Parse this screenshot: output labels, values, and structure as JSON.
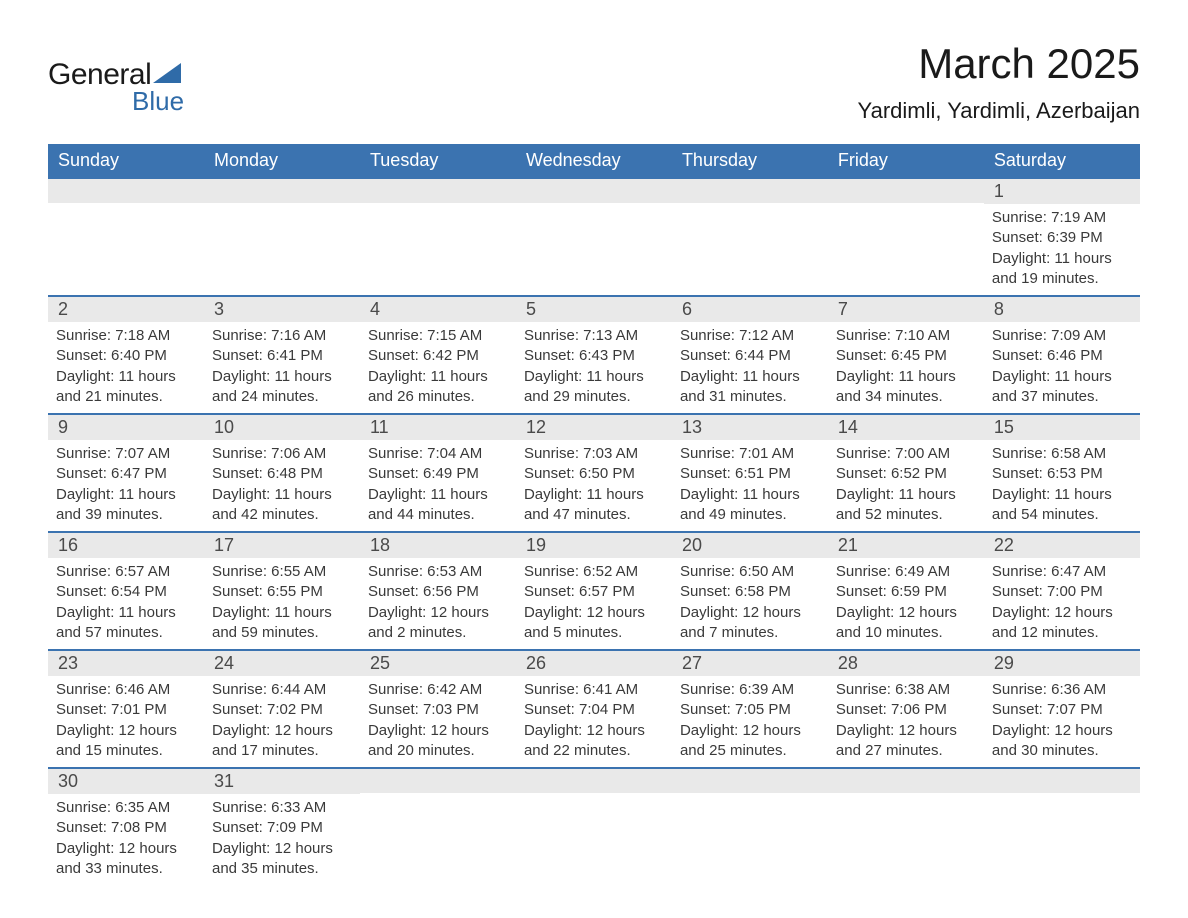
{
  "logo": {
    "word1": "General",
    "word2": "Blue",
    "triangle_color": "#2f6ba8",
    "text_color_dark": "#1a1a1a",
    "text_color_blue": "#2f6ba8"
  },
  "header": {
    "month_title": "March 2025",
    "location": "Yardimli, Yardimli, Azerbaijan"
  },
  "colors": {
    "header_bg": "#3b73b0",
    "header_text": "#ffffff",
    "daynum_bg": "#e9e9e9",
    "daynum_text": "#4a4a4a",
    "body_text": "#3a3a3a",
    "row_border": "#3b73b0",
    "page_bg": "#ffffff"
  },
  "typography": {
    "month_title_fontsize": 42,
    "location_fontsize": 22,
    "dayheader_fontsize": 18,
    "daynum_fontsize": 18,
    "body_fontsize": 15,
    "font_family": "Arial"
  },
  "calendar": {
    "type": "table",
    "day_headers": [
      "Sunday",
      "Monday",
      "Tuesday",
      "Wednesday",
      "Thursday",
      "Friday",
      "Saturday"
    ],
    "weeks": [
      [
        {
          "day": "",
          "sunrise": "",
          "sunset": "",
          "daylight1": "",
          "daylight2": ""
        },
        {
          "day": "",
          "sunrise": "",
          "sunset": "",
          "daylight1": "",
          "daylight2": ""
        },
        {
          "day": "",
          "sunrise": "",
          "sunset": "",
          "daylight1": "",
          "daylight2": ""
        },
        {
          "day": "",
          "sunrise": "",
          "sunset": "",
          "daylight1": "",
          "daylight2": ""
        },
        {
          "day": "",
          "sunrise": "",
          "sunset": "",
          "daylight1": "",
          "daylight2": ""
        },
        {
          "day": "",
          "sunrise": "",
          "sunset": "",
          "daylight1": "",
          "daylight2": ""
        },
        {
          "day": "1",
          "sunrise": "Sunrise: 7:19 AM",
          "sunset": "Sunset: 6:39 PM",
          "daylight1": "Daylight: 11 hours",
          "daylight2": "and 19 minutes."
        }
      ],
      [
        {
          "day": "2",
          "sunrise": "Sunrise: 7:18 AM",
          "sunset": "Sunset: 6:40 PM",
          "daylight1": "Daylight: 11 hours",
          "daylight2": "and 21 minutes."
        },
        {
          "day": "3",
          "sunrise": "Sunrise: 7:16 AM",
          "sunset": "Sunset: 6:41 PM",
          "daylight1": "Daylight: 11 hours",
          "daylight2": "and 24 minutes."
        },
        {
          "day": "4",
          "sunrise": "Sunrise: 7:15 AM",
          "sunset": "Sunset: 6:42 PM",
          "daylight1": "Daylight: 11 hours",
          "daylight2": "and 26 minutes."
        },
        {
          "day": "5",
          "sunrise": "Sunrise: 7:13 AM",
          "sunset": "Sunset: 6:43 PM",
          "daylight1": "Daylight: 11 hours",
          "daylight2": "and 29 minutes."
        },
        {
          "day": "6",
          "sunrise": "Sunrise: 7:12 AM",
          "sunset": "Sunset: 6:44 PM",
          "daylight1": "Daylight: 11 hours",
          "daylight2": "and 31 minutes."
        },
        {
          "day": "7",
          "sunrise": "Sunrise: 7:10 AM",
          "sunset": "Sunset: 6:45 PM",
          "daylight1": "Daylight: 11 hours",
          "daylight2": "and 34 minutes."
        },
        {
          "day": "8",
          "sunrise": "Sunrise: 7:09 AM",
          "sunset": "Sunset: 6:46 PM",
          "daylight1": "Daylight: 11 hours",
          "daylight2": "and 37 minutes."
        }
      ],
      [
        {
          "day": "9",
          "sunrise": "Sunrise: 7:07 AM",
          "sunset": "Sunset: 6:47 PM",
          "daylight1": "Daylight: 11 hours",
          "daylight2": "and 39 minutes."
        },
        {
          "day": "10",
          "sunrise": "Sunrise: 7:06 AM",
          "sunset": "Sunset: 6:48 PM",
          "daylight1": "Daylight: 11 hours",
          "daylight2": "and 42 minutes."
        },
        {
          "day": "11",
          "sunrise": "Sunrise: 7:04 AM",
          "sunset": "Sunset: 6:49 PM",
          "daylight1": "Daylight: 11 hours",
          "daylight2": "and 44 minutes."
        },
        {
          "day": "12",
          "sunrise": "Sunrise: 7:03 AM",
          "sunset": "Sunset: 6:50 PM",
          "daylight1": "Daylight: 11 hours",
          "daylight2": "and 47 minutes."
        },
        {
          "day": "13",
          "sunrise": "Sunrise: 7:01 AM",
          "sunset": "Sunset: 6:51 PM",
          "daylight1": "Daylight: 11 hours",
          "daylight2": "and 49 minutes."
        },
        {
          "day": "14",
          "sunrise": "Sunrise: 7:00 AM",
          "sunset": "Sunset: 6:52 PM",
          "daylight1": "Daylight: 11 hours",
          "daylight2": "and 52 minutes."
        },
        {
          "day": "15",
          "sunrise": "Sunrise: 6:58 AM",
          "sunset": "Sunset: 6:53 PM",
          "daylight1": "Daylight: 11 hours",
          "daylight2": "and 54 minutes."
        }
      ],
      [
        {
          "day": "16",
          "sunrise": "Sunrise: 6:57 AM",
          "sunset": "Sunset: 6:54 PM",
          "daylight1": "Daylight: 11 hours",
          "daylight2": "and 57 minutes."
        },
        {
          "day": "17",
          "sunrise": "Sunrise: 6:55 AM",
          "sunset": "Sunset: 6:55 PM",
          "daylight1": "Daylight: 11 hours",
          "daylight2": "and 59 minutes."
        },
        {
          "day": "18",
          "sunrise": "Sunrise: 6:53 AM",
          "sunset": "Sunset: 6:56 PM",
          "daylight1": "Daylight: 12 hours",
          "daylight2": "and 2 minutes."
        },
        {
          "day": "19",
          "sunrise": "Sunrise: 6:52 AM",
          "sunset": "Sunset: 6:57 PM",
          "daylight1": "Daylight: 12 hours",
          "daylight2": "and 5 minutes."
        },
        {
          "day": "20",
          "sunrise": "Sunrise: 6:50 AM",
          "sunset": "Sunset: 6:58 PM",
          "daylight1": "Daylight: 12 hours",
          "daylight2": "and 7 minutes."
        },
        {
          "day": "21",
          "sunrise": "Sunrise: 6:49 AM",
          "sunset": "Sunset: 6:59 PM",
          "daylight1": "Daylight: 12 hours",
          "daylight2": "and 10 minutes."
        },
        {
          "day": "22",
          "sunrise": "Sunrise: 6:47 AM",
          "sunset": "Sunset: 7:00 PM",
          "daylight1": "Daylight: 12 hours",
          "daylight2": "and 12 minutes."
        }
      ],
      [
        {
          "day": "23",
          "sunrise": "Sunrise: 6:46 AM",
          "sunset": "Sunset: 7:01 PM",
          "daylight1": "Daylight: 12 hours",
          "daylight2": "and 15 minutes."
        },
        {
          "day": "24",
          "sunrise": "Sunrise: 6:44 AM",
          "sunset": "Sunset: 7:02 PM",
          "daylight1": "Daylight: 12 hours",
          "daylight2": "and 17 minutes."
        },
        {
          "day": "25",
          "sunrise": "Sunrise: 6:42 AM",
          "sunset": "Sunset: 7:03 PM",
          "daylight1": "Daylight: 12 hours",
          "daylight2": "and 20 minutes."
        },
        {
          "day": "26",
          "sunrise": "Sunrise: 6:41 AM",
          "sunset": "Sunset: 7:04 PM",
          "daylight1": "Daylight: 12 hours",
          "daylight2": "and 22 minutes."
        },
        {
          "day": "27",
          "sunrise": "Sunrise: 6:39 AM",
          "sunset": "Sunset: 7:05 PM",
          "daylight1": "Daylight: 12 hours",
          "daylight2": "and 25 minutes."
        },
        {
          "day": "28",
          "sunrise": "Sunrise: 6:38 AM",
          "sunset": "Sunset: 7:06 PM",
          "daylight1": "Daylight: 12 hours",
          "daylight2": "and 27 minutes."
        },
        {
          "day": "29",
          "sunrise": "Sunrise: 6:36 AM",
          "sunset": "Sunset: 7:07 PM",
          "daylight1": "Daylight: 12 hours",
          "daylight2": "and 30 minutes."
        }
      ],
      [
        {
          "day": "30",
          "sunrise": "Sunrise: 6:35 AM",
          "sunset": "Sunset: 7:08 PM",
          "daylight1": "Daylight: 12 hours",
          "daylight2": "and 33 minutes."
        },
        {
          "day": "31",
          "sunrise": "Sunrise: 6:33 AM",
          "sunset": "Sunset: 7:09 PM",
          "daylight1": "Daylight: 12 hours",
          "daylight2": "and 35 minutes."
        },
        {
          "day": "",
          "sunrise": "",
          "sunset": "",
          "daylight1": "",
          "daylight2": ""
        },
        {
          "day": "",
          "sunrise": "",
          "sunset": "",
          "daylight1": "",
          "daylight2": ""
        },
        {
          "day": "",
          "sunrise": "",
          "sunset": "",
          "daylight1": "",
          "daylight2": ""
        },
        {
          "day": "",
          "sunrise": "",
          "sunset": "",
          "daylight1": "",
          "daylight2": ""
        },
        {
          "day": "",
          "sunrise": "",
          "sunset": "",
          "daylight1": "",
          "daylight2": ""
        }
      ]
    ]
  }
}
